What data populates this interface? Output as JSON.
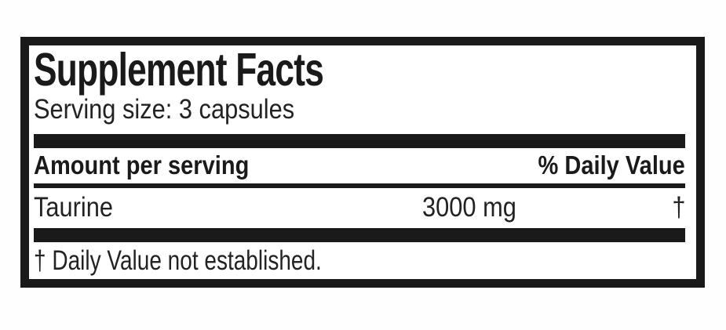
{
  "label": {
    "title": "Supplement Facts",
    "serving_size": "Serving size: 3 capsules",
    "columns": {
      "left": "Amount per serving",
      "right": "% Daily Value"
    },
    "rows": [
      {
        "name": "Taurine",
        "amount": "3000 mg",
        "daily_value": "†"
      }
    ],
    "footnote": "† Daily Value not established.",
    "colors": {
      "ink": "#1a1a1a",
      "background": "#ffffff"
    }
  }
}
